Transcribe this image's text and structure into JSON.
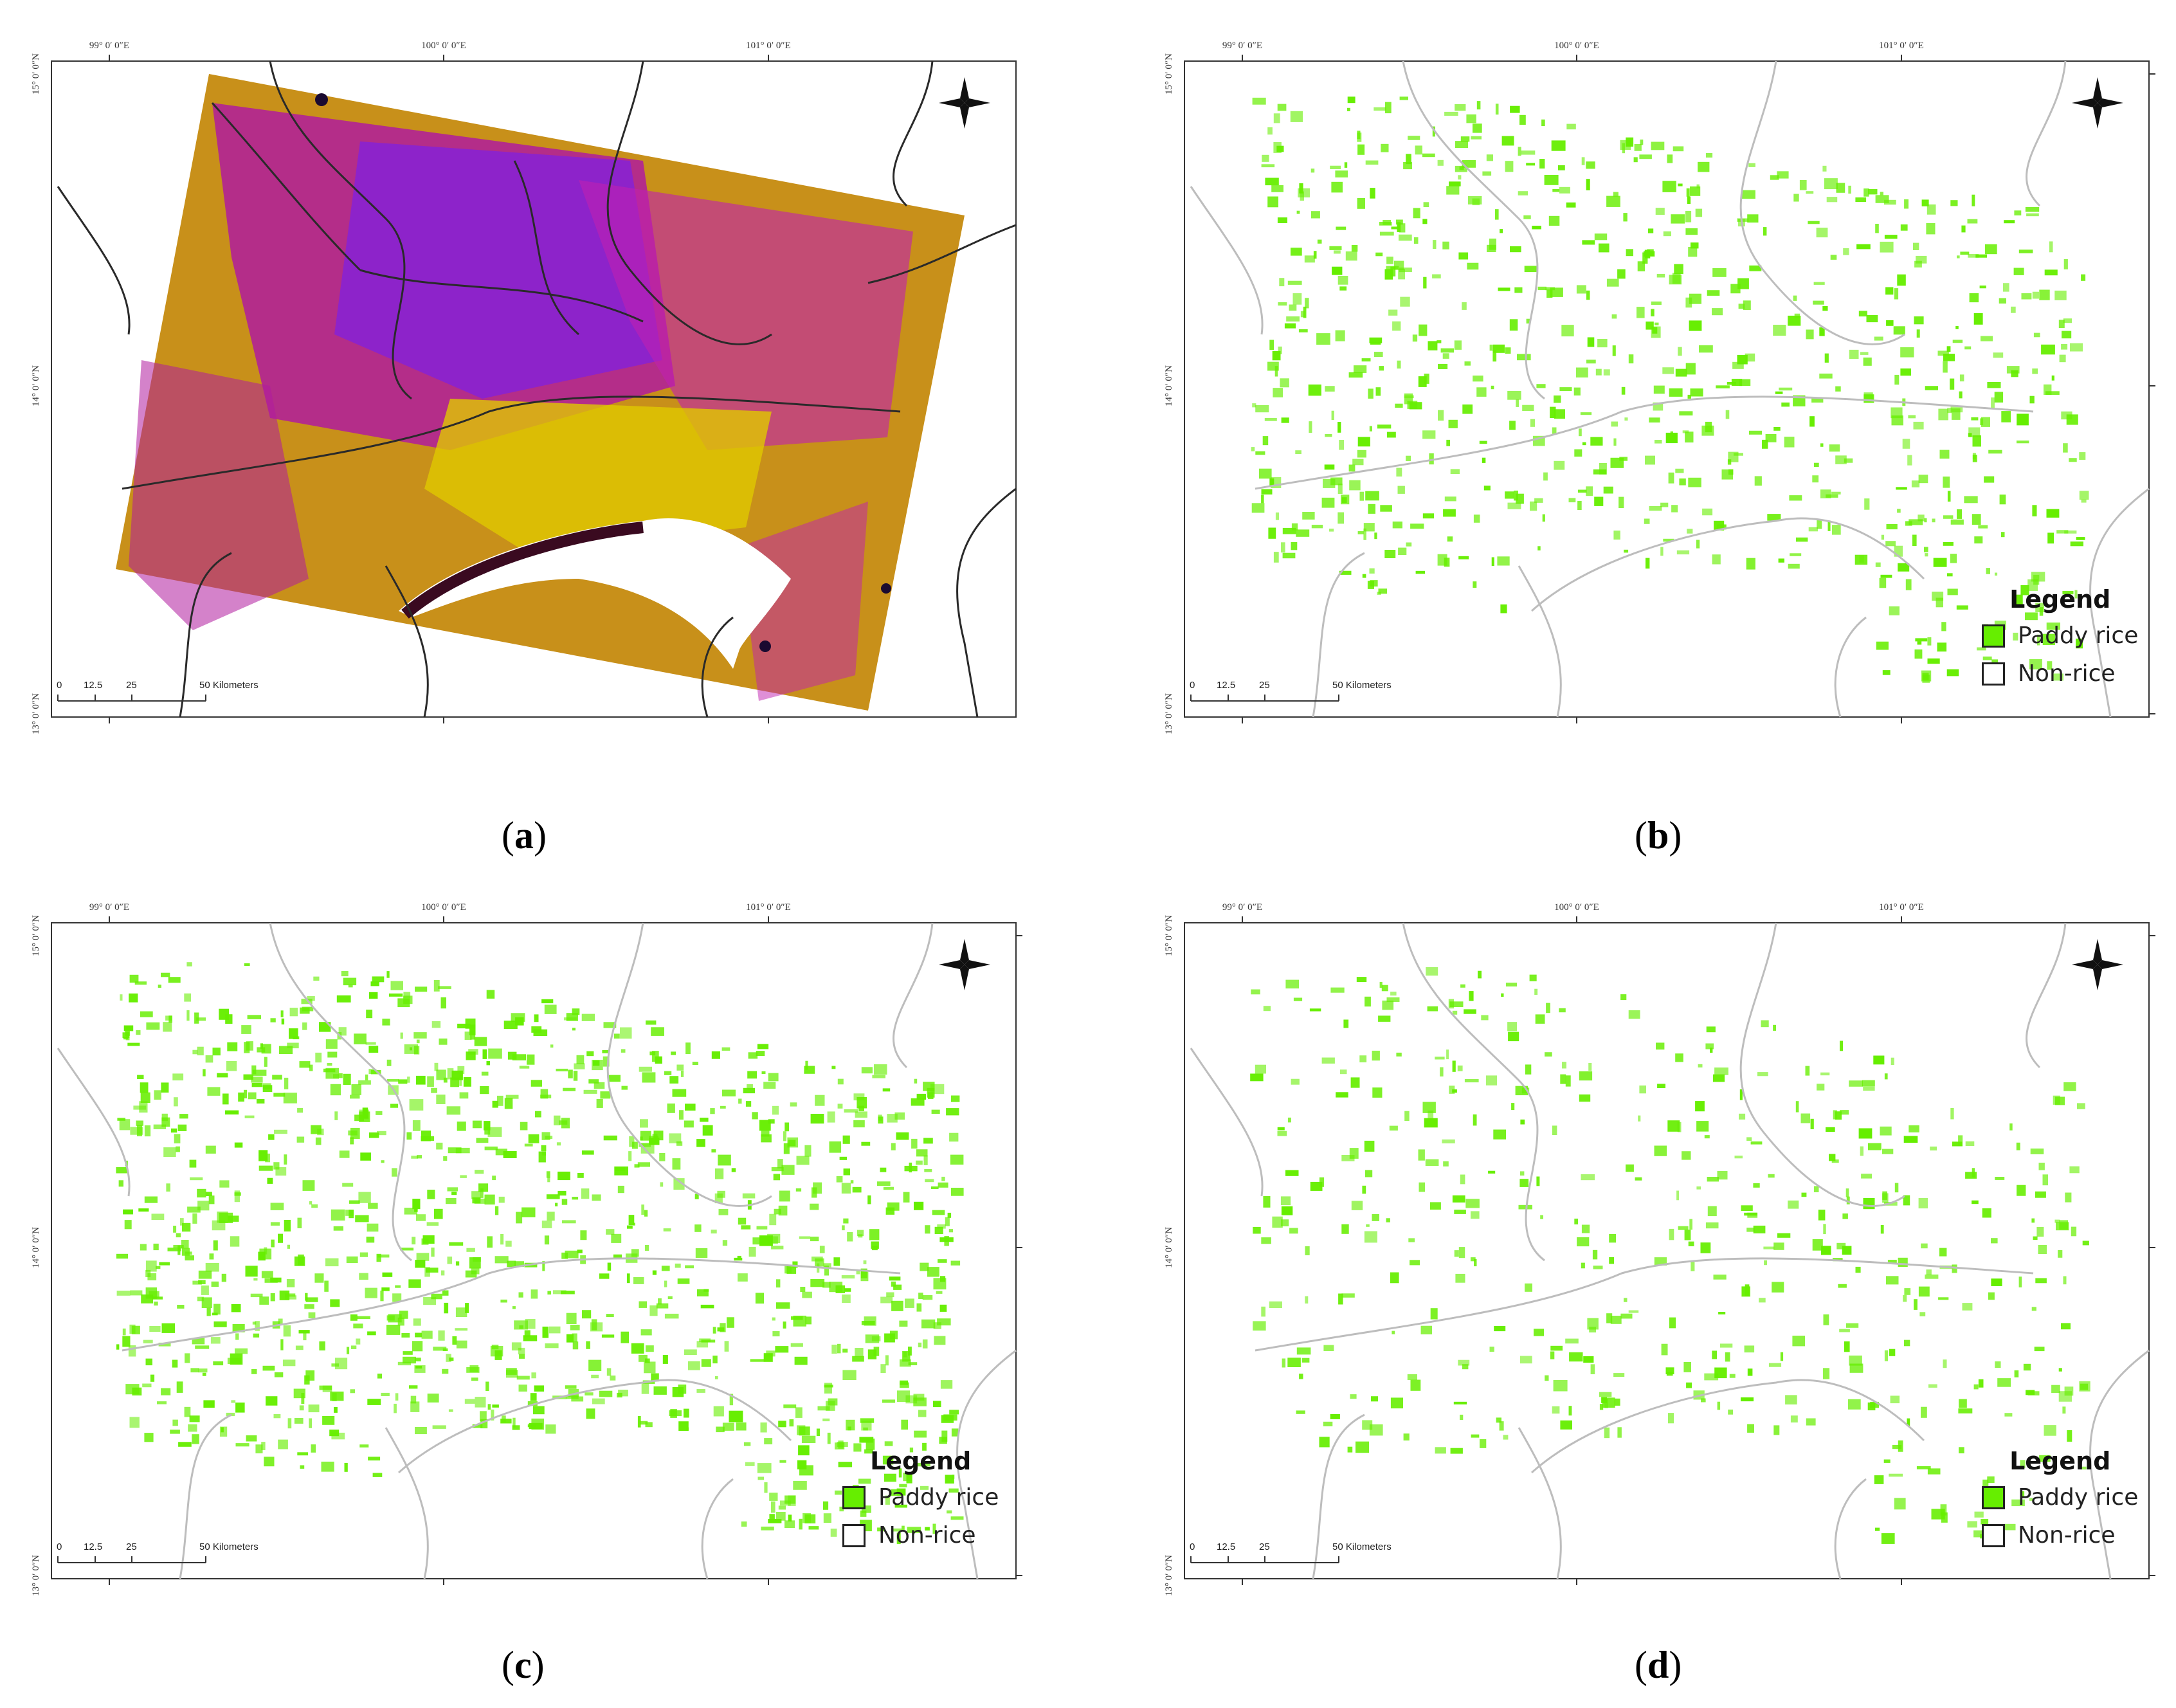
{
  "lon_labels": [
    "99° 0′ 0″E",
    "100° 0′ 0″E",
    "101° 0′ 0″E"
  ],
  "lat_labels": [
    "15° 0′ 0″N",
    "14° 0′ 0″N",
    "13° 0′ 0″N"
  ],
  "scale_bar": {
    "ticks": [
      "0",
      "12.5",
      "25",
      "50 Kilometers"
    ]
  },
  "panels": [
    {
      "id": "a",
      "label_open": "(",
      "label_letter": "a",
      "label_close": ")",
      "has_legend": false,
      "rice_density": 0
    },
    {
      "id": "b",
      "label_open": "(",
      "label_letter": "b",
      "label_close": ")",
      "has_legend": true,
      "rice_density": 0.45
    },
    {
      "id": "c",
      "label_open": "(",
      "label_letter": "c",
      "label_close": ")",
      "has_legend": true,
      "rice_density": 0.8
    },
    {
      "id": "d",
      "label_open": "(",
      "label_letter": "d",
      "label_close": ")",
      "has_legend": true,
      "rice_density": 0.25
    }
  ],
  "legend": {
    "title": "Legend",
    "items": [
      {
        "label": "Paddy rice",
        "color": "#66ee00"
      },
      {
        "label": "Non-rice",
        "color": "#ffffff"
      }
    ]
  },
  "colors": {
    "rice": "#66ee00",
    "sar_orange": "#c8901a",
    "sar_magenta": "#c020b0",
    "sar_purple": "#8020e0",
    "sar_yellow": "#e0c800"
  }
}
